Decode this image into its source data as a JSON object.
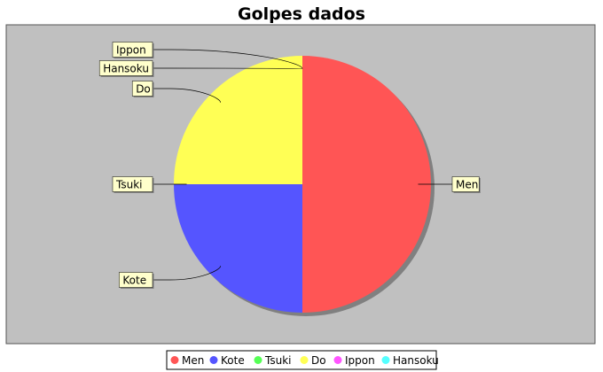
{
  "chart_data": {
    "type": "pie",
    "title": "Golpes dados",
    "categories": [
      "Men",
      "Kote",
      "Tsuki",
      "Do",
      "Ippon",
      "Hansoku"
    ],
    "values": [
      2,
      1,
      0,
      1,
      0,
      0
    ],
    "colors": [
      "#ff5555",
      "#5555ff",
      "#55ff55",
      "#ffff55",
      "#ff55ff",
      "#55ffff"
    ],
    "legend_position": "bottom",
    "plot_background": "#c0c0c0",
    "label_background": "#ffffcc"
  }
}
